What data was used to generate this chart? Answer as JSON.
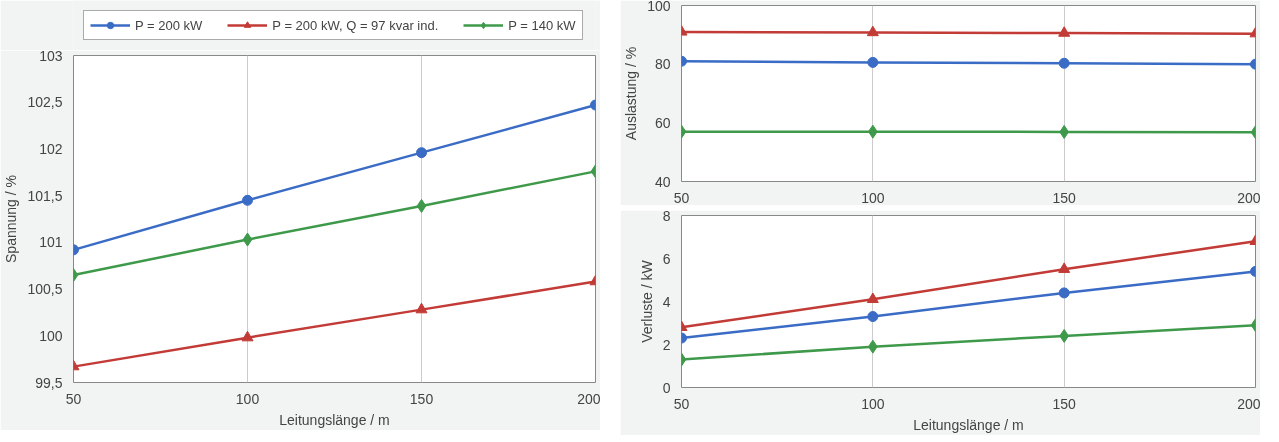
{
  "chart_data": [
    {
      "type": "line",
      "xlabel": "Leitungslänge / m",
      "ylabel": "Spannung / %",
      "x": [
        50,
        100,
        150,
        200
      ],
      "xlim": [
        50,
        200
      ],
      "xticks": [
        50,
        100,
        150,
        200
      ],
      "ylim": [
        99.5,
        103
      ],
      "yticks": [
        {
          "value": 99.5,
          "label": "99,5"
        },
        100,
        {
          "value": 100.5,
          "label": "100,5"
        },
        101,
        {
          "value": 101.5,
          "label": "101,5"
        },
        102,
        {
          "value": 102.5,
          "label": "102,5"
        },
        103
      ],
      "grid": "x",
      "legend": "top",
      "line_style": "solid",
      "series": [
        {
          "name": "P = 200 kW",
          "color": "#3a6cc6",
          "marker": "circle",
          "values": [
            100.92,
            101.45,
            101.96,
            102.47
          ]
        },
        {
          "name": "P = 200 kW, Q = 97 kvar ind.",
          "color": "#c23b36",
          "marker": "triangle",
          "values": [
            99.67,
            99.98,
            100.28,
            100.58
          ]
        },
        {
          "name": "P = 140 kW",
          "color": "#3e9a4a",
          "marker": "diamond",
          "values": [
            100.65,
            101.03,
            101.39,
            101.76
          ]
        }
      ]
    },
    {
      "type": "line",
      "ylabel": "Auslastung / %",
      "x": [
        50,
        100,
        150,
        200
      ],
      "xlim": [
        50,
        200
      ],
      "xticks": [
        50,
        100,
        150,
        200
      ],
      "ylim": [
        40,
        100
      ],
      "yticks": [
        40,
        60,
        80,
        100
      ],
      "grid": "x",
      "legend": false,
      "line_style": "solid",
      "series": [
        {
          "color": "#3a6cc6",
          "marker": "circle",
          "values": [
            81,
            80.6,
            80.3,
            80
          ]
        },
        {
          "color": "#c23b36",
          "marker": "triangle",
          "values": [
            91,
            90.8,
            90.6,
            90.4
          ]
        },
        {
          "color": "#3e9a4a",
          "marker": "diamond",
          "values": [
            57,
            57,
            56.9,
            56.8
          ]
        }
      ]
    },
    {
      "type": "line",
      "xlabel": "Leitungslänge / m",
      "ylabel": "Verluste / kW",
      "x": [
        50,
        100,
        150,
        200
      ],
      "xlim": [
        50,
        200
      ],
      "xticks": [
        50,
        100,
        150,
        200
      ],
      "ylim": [
        0,
        8
      ],
      "yticks": [
        0,
        2,
        4,
        6,
        8
      ],
      "grid": "x",
      "legend": false,
      "line_style": "solid",
      "series": [
        {
          "color": "#3a6cc6",
          "marker": "circle",
          "values": [
            2.3,
            3.3,
            4.4,
            5.4
          ]
        },
        {
          "color": "#c23b36",
          "marker": "triangle",
          "values": [
            2.8,
            4.1,
            5.5,
            6.8
          ]
        },
        {
          "color": "#3e9a4a",
          "marker": "diamond",
          "values": [
            1.3,
            1.9,
            2.4,
            2.9
          ]
        }
      ]
    }
  ]
}
